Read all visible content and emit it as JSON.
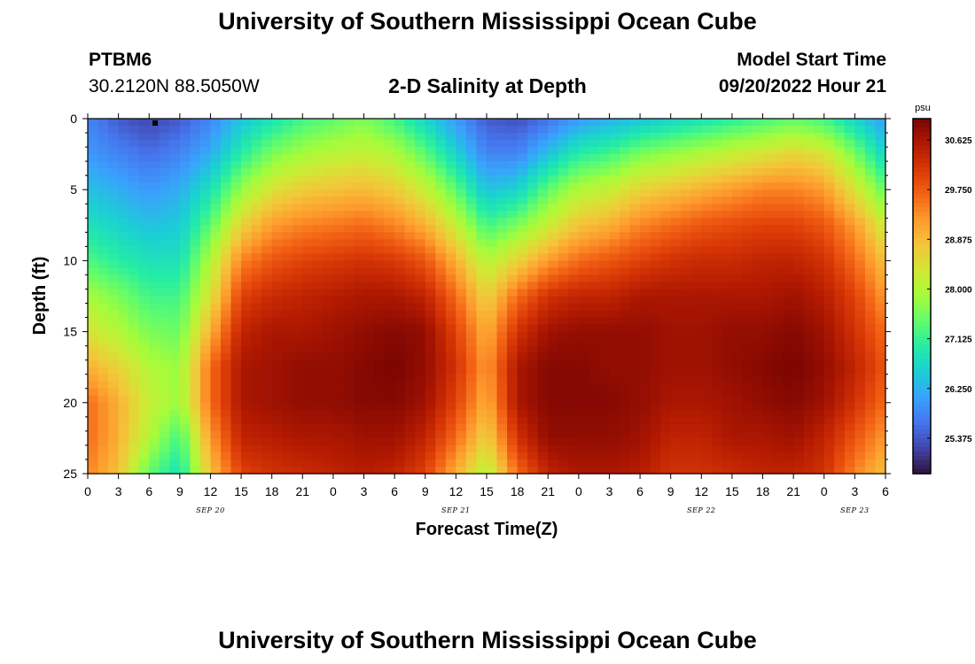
{
  "header": {
    "title": "University of Southern Mississippi Ocean Cube",
    "station_id": "PTBM6",
    "station_coords": "30.2120N  88.5050W",
    "plot_title": "2-D Salinity at Depth",
    "model_start_label": "Model Start Time",
    "model_start_value": "09/20/2022 Hour 21"
  },
  "footer": {
    "title": "University of Southern Mississippi Ocean Cube"
  },
  "chart_data": {
    "type": "heatmap",
    "title": "2-D Salinity at Depth",
    "xlabel": "Forecast Time(Z)",
    "ylabel": "Depth (ft)",
    "x_range_hours": [
      0,
      78
    ],
    "ylim": [
      0,
      25
    ],
    "x_tick_labels": [
      "0",
      "3",
      "6",
      "9",
      "12",
      "15",
      "18",
      "21",
      "0",
      "3",
      "6",
      "9",
      "12",
      "15",
      "18",
      "21",
      "0",
      "3",
      "6",
      "9",
      "12",
      "15",
      "18",
      "21",
      "0",
      "3",
      "6"
    ],
    "y_tick_labels": [
      "0",
      "5",
      "10",
      "15",
      "20",
      "25"
    ],
    "date_labels": [
      {
        "text": "SEP 20",
        "hour": 12
      },
      {
        "text": "SEP 21",
        "hour": 36
      },
      {
        "text": "SEP 22",
        "hour": 60
      },
      {
        "text": "SEP 23",
        "hour": 75
      }
    ],
    "colorbar": {
      "unit": "psu",
      "min": 24.75,
      "max": 31.0,
      "tick_labels": [
        "30.625",
        "29.750",
        "28.875",
        "28.000",
        "27.125",
        "26.250",
        "25.375"
      ],
      "tick_values": [
        30.625,
        29.75,
        28.875,
        28.0,
        27.125,
        26.25,
        25.375
      ]
    },
    "salinity_profiles": {
      "depths_ft": [
        0,
        2.5,
        5,
        7.5,
        10,
        12.5,
        15,
        17.5,
        20,
        22.5,
        25
      ],
      "hours": [
        0,
        3,
        6,
        9,
        12,
        15,
        18,
        21,
        24,
        27,
        30,
        33,
        36,
        39,
        42,
        45,
        48,
        51,
        54,
        57,
        60,
        63,
        66,
        69,
        72,
        75,
        78
      ],
      "values": [
        [
          25.8,
          26.0,
          26.4,
          26.8,
          27.3,
          27.9,
          28.4,
          29.0,
          29.6,
          29.6,
          29.4
        ],
        [
          25.4,
          25.8,
          26.2,
          26.6,
          27.0,
          27.6,
          28.0,
          28.6,
          29.0,
          29.0,
          28.8
        ],
        [
          25.2,
          25.6,
          26.0,
          26.4,
          26.8,
          27.2,
          27.6,
          28.0,
          28.2,
          28.0,
          27.4
        ],
        [
          25.4,
          25.8,
          26.2,
          26.5,
          26.8,
          27.2,
          27.5,
          27.8,
          27.8,
          27.2,
          26.8
        ],
        [
          25.8,
          26.2,
          26.8,
          27.4,
          28.0,
          28.4,
          29.0,
          29.6,
          29.6,
          29.2,
          28.8
        ],
        [
          26.4,
          27.0,
          27.8,
          28.6,
          29.4,
          30.0,
          30.4,
          30.6,
          30.6,
          30.4,
          30.0
        ],
        [
          26.8,
          27.6,
          28.4,
          29.2,
          29.8,
          30.3,
          30.6,
          30.7,
          30.7,
          30.5,
          30.2
        ],
        [
          27.2,
          27.9,
          28.7,
          29.4,
          30.0,
          30.4,
          30.6,
          30.8,
          30.8,
          30.6,
          30.3
        ],
        [
          27.4,
          28.1,
          28.8,
          29.5,
          30.1,
          30.5,
          30.7,
          30.8,
          30.8,
          30.6,
          30.4
        ],
        [
          27.6,
          28.2,
          28.9,
          29.6,
          30.2,
          30.6,
          30.8,
          30.9,
          30.9,
          30.7,
          30.5
        ],
        [
          27.2,
          28.0,
          28.7,
          29.4,
          30.1,
          30.6,
          30.9,
          31.0,
          30.9,
          30.7,
          30.4
        ],
        [
          26.6,
          27.4,
          28.2,
          29.0,
          29.8,
          30.4,
          30.8,
          30.8,
          30.7,
          30.4,
          30.0
        ],
        [
          26.0,
          26.6,
          27.4,
          28.2,
          29.0,
          29.6,
          30.0,
          30.2,
          30.0,
          29.6,
          29.0
        ],
        [
          25.4,
          25.8,
          26.4,
          27.2,
          28.0,
          28.6,
          29.0,
          29.2,
          29.0,
          28.6,
          28.0
        ],
        [
          25.3,
          25.8,
          26.6,
          27.6,
          28.6,
          29.6,
          30.2,
          30.6,
          30.6,
          30.2,
          29.6
        ],
        [
          25.6,
          26.4,
          27.4,
          28.2,
          29.2,
          30.2,
          30.7,
          30.9,
          30.9,
          30.8,
          30.4
        ],
        [
          26.0,
          27.0,
          28.0,
          28.8,
          29.6,
          30.4,
          30.8,
          30.9,
          30.9,
          30.8,
          30.6
        ],
        [
          26.2,
          27.2,
          28.2,
          29.0,
          29.8,
          30.4,
          30.8,
          30.8,
          30.9,
          30.8,
          30.6
        ],
        [
          26.4,
          27.6,
          28.6,
          29.4,
          30.0,
          30.6,
          30.8,
          30.8,
          30.8,
          30.7,
          30.5
        ],
        [
          26.6,
          27.8,
          28.8,
          29.6,
          30.2,
          30.6,
          30.7,
          30.7,
          30.6,
          30.4,
          30.2
        ],
        [
          26.8,
          28.0,
          29.0,
          29.8,
          30.3,
          30.6,
          30.7,
          30.7,
          30.6,
          30.4,
          30.2
        ],
        [
          27.0,
          28.2,
          29.2,
          29.9,
          30.3,
          30.6,
          30.8,
          30.8,
          30.7,
          30.6,
          30.3
        ],
        [
          27.2,
          28.4,
          29.4,
          30.0,
          30.4,
          30.6,
          30.8,
          30.9,
          30.8,
          30.6,
          30.4
        ],
        [
          27.4,
          28.6,
          29.4,
          30.0,
          30.4,
          30.7,
          30.9,
          31.0,
          30.9,
          30.7,
          30.4
        ],
        [
          27.2,
          28.4,
          29.2,
          29.8,
          30.2,
          30.5,
          30.7,
          30.8,
          30.7,
          30.4,
          30.2
        ],
        [
          26.6,
          27.6,
          28.4,
          29.2,
          29.6,
          30.0,
          30.2,
          30.4,
          30.2,
          29.8,
          29.4
        ],
        [
          26.0,
          26.6,
          27.4,
          28.2,
          28.8,
          29.2,
          29.6,
          29.8,
          29.6,
          29.2,
          28.8
        ]
      ]
    },
    "colormap": [
      "#30123b",
      "#4145ab",
      "#4675ed",
      "#39a2fc",
      "#1bcfd4",
      "#24eca6",
      "#61fc6c",
      "#a4fc3b",
      "#d1e834",
      "#f3c63a",
      "#fe9b2d",
      "#f36315",
      "#d93806",
      "#b11901",
      "#7a0403"
    ]
  }
}
